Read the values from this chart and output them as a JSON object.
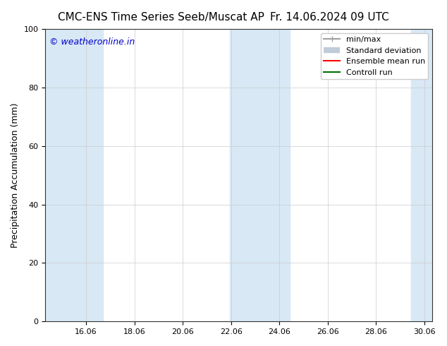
{
  "title_left": "CMC-ENS Time Series Seeb/Muscat AP",
  "title_right": "Fr. 14.06.2024 09 UTC",
  "ylabel": "Precipitation Accumulation (mm)",
  "watermark": "© weatheronline.in",
  "watermark_color": "#0000cc",
  "ylim": [
    0,
    100
  ],
  "xlim_start": 14.375,
  "xlim_end": 30.375,
  "xticks": [
    16.06,
    18.06,
    20.06,
    22.06,
    24.06,
    26.06,
    28.06,
    30.06
  ],
  "xtick_labels": [
    "16.06",
    "18.06",
    "20.06",
    "22.06",
    "24.06",
    "26.06",
    "28.06",
    "30.06"
  ],
  "yticks": [
    0,
    20,
    40,
    60,
    80,
    100
  ],
  "shaded_bands": [
    {
      "x_start": 14.375,
      "x_end": 16.75,
      "color": "#d8e8f5"
    },
    {
      "x_start": 22.0,
      "x_end": 24.5,
      "color": "#d8e8f5"
    },
    {
      "x_start": 29.5,
      "x_end": 30.375,
      "color": "#d8e8f5"
    }
  ],
  "legend_entries": [
    {
      "label": "min/max",
      "color": "#a0a0a0",
      "lw": 1.5,
      "type": "line_with_caps"
    },
    {
      "label": "Standard deviation",
      "color": "#c0ccd8",
      "lw": 6,
      "type": "thick_line"
    },
    {
      "label": "Ensemble mean run",
      "color": "#ff0000",
      "lw": 1.5,
      "type": "line"
    },
    {
      "label": "Controll run",
      "color": "#007000",
      "lw": 1.5,
      "type": "line"
    }
  ],
  "bg_color": "#ffffff",
  "plot_bg_color": "#ffffff",
  "grid_color": "#cccccc",
  "font_size_title": 11,
  "font_size_axis": 9,
  "font_size_tick": 8,
  "font_size_legend": 8,
  "font_size_watermark": 9
}
